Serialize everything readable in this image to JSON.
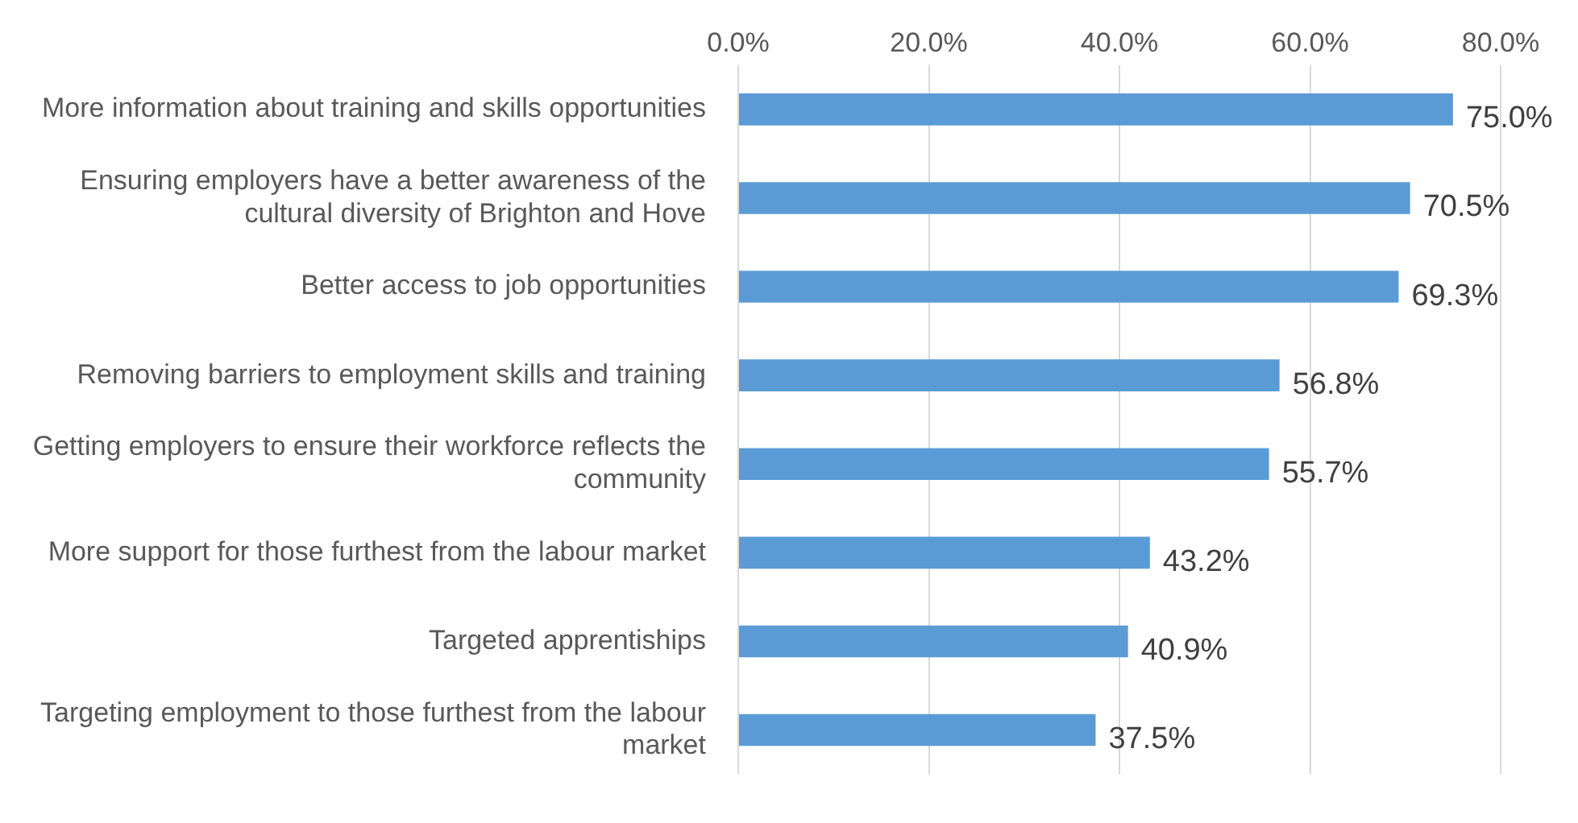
{
  "chart_data": {
    "type": "bar",
    "orientation": "horizontal",
    "categories": [
      "More information about training and skills opportunities",
      "Ensuring employers have a better awareness of the cultural diversity of Brighton and Hove",
      "Better access to job opportunities",
      "Removing barriers to employment skills and training",
      "Getting employers to ensure their workforce reflects the community",
      "More support for those furthest from the labour market",
      "Targeted apprentiships",
      "Targeting employment to those furthest from the labour market"
    ],
    "values": [
      75.0,
      70.5,
      69.3,
      56.8,
      55.7,
      43.2,
      40.9,
      37.5
    ],
    "value_labels": [
      "75.0%",
      "70.5%",
      "69.3%",
      "56.8%",
      "55.7%",
      "43.2%",
      "40.9%",
      "37.5%"
    ],
    "color": "#5b9bd5",
    "xlim": [
      0,
      80
    ],
    "xticks": [
      {
        "value": 0,
        "label": "0.0%"
      },
      {
        "value": 20,
        "label": "20.0%"
      },
      {
        "value": 40,
        "label": "40.0%"
      },
      {
        "value": 60,
        "label": "60.0%"
      },
      {
        "value": 80,
        "label": "80.0%"
      }
    ],
    "grid": "x",
    "legend": false
  }
}
